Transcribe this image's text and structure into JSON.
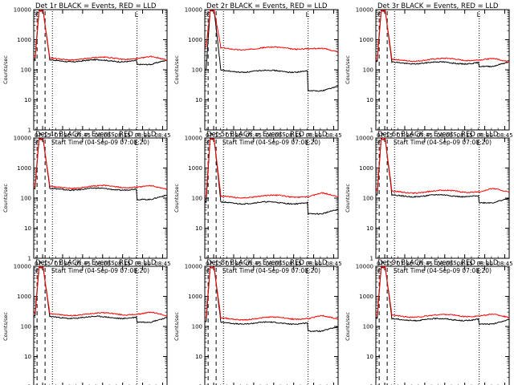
{
  "panel_title_suffix": "BLACK = Events, RED = LLD",
  "ylabel": "Counts/sec",
  "xlabel": "Start Time (04-Sep-09 07:08:20)",
  "x_tick_labels": [
    "07:15",
    "07:30",
    "07:45",
    "08:00",
    "08:15",
    "08:30",
    "08:45"
  ],
  "y_tick_labels": [
    "1",
    "10",
    "100",
    "1000",
    "10000"
  ],
  "colors": {
    "events": "#000000",
    "lld": "#ff0000",
    "axes": "#000000"
  },
  "chart_data": [
    {
      "type": "line",
      "title": "Det 1r",
      "events_plateau": 200,
      "lld_plateau": 230,
      "events_final": 150,
      "lld_final": 280,
      "peak": 9500,
      "markers": [
        "C",
        "L"
      ],
      "log_y": true,
      "ylim": [
        1,
        10000
      ]
    },
    {
      "type": "line",
      "title": "Det 2r",
      "events_plateau": 90,
      "lld_plateau": 500,
      "events_final": 20,
      "lld_final": 520,
      "peak": 9500,
      "markers": [
        "C",
        "L"
      ],
      "log_y": true,
      "ylim": [
        1,
        10000
      ]
    },
    {
      "type": "line",
      "title": "Det 3r",
      "events_plateau": 170,
      "lld_plateau": 210,
      "events_final": 130,
      "lld_final": 240,
      "peak": 9500,
      "markers": [
        "C",
        "L"
      ],
      "log_y": true,
      "ylim": [
        1,
        10000
      ]
    },
    {
      "type": "line",
      "title": "Det 4r",
      "events_plateau": 200,
      "lld_plateau": 230,
      "events_final": 90,
      "lld_final": 260,
      "peak": 9500,
      "markers": [
        "C",
        "L"
      ],
      "log_y": true,
      "ylim": [
        1,
        10000
      ]
    },
    {
      "type": "line",
      "title": "Det 5r",
      "events_plateau": 70,
      "lld_plateau": 110,
      "events_final": 30,
      "lld_final": 150,
      "peak": 9500,
      "markers": [
        "C",
        "L"
      ],
      "log_y": true,
      "ylim": [
        1,
        10000
      ]
    },
    {
      "type": "line",
      "title": "Det 6r",
      "events_plateau": 120,
      "lld_plateau": 160,
      "events_final": 70,
      "lld_final": 210,
      "peak": 9500,
      "markers": [
        "C",
        "L"
      ],
      "log_y": true,
      "ylim": [
        1,
        10000
      ]
    },
    {
      "type": "line",
      "title": "Det 7r",
      "events_plateau": 200,
      "lld_plateau": 250,
      "events_final": 140,
      "lld_final": 300,
      "peak": 9500,
      "markers": [
        "C",
        "L"
      ],
      "log_y": true,
      "ylim": [
        1,
        10000
      ]
    },
    {
      "type": "line",
      "title": "Det 8r",
      "events_plateau": 130,
      "lld_plateau": 180,
      "events_final": 70,
      "lld_final": 230,
      "peak": 9500,
      "markers": [
        "C",
        "L"
      ],
      "log_y": true,
      "ylim": [
        1,
        10000
      ]
    },
    {
      "type": "line",
      "title": "Det 9r",
      "events_plateau": 170,
      "lld_plateau": 220,
      "events_final": 120,
      "lld_final": 260,
      "peak": 9500,
      "markers": [
        "C",
        "L"
      ],
      "log_y": true,
      "ylim": [
        1,
        10000
      ]
    }
  ]
}
